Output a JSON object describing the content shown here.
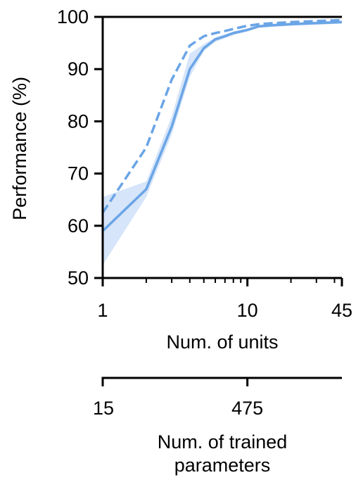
{
  "chart_data": {
    "type": "line",
    "xscale": "log",
    "xlabel": "Num. of units",
    "ylabel": "Performance (%)",
    "xlim": [
      1,
      45
    ],
    "ylim": [
      50,
      100
    ],
    "x_ticks": [
      1,
      10,
      45
    ],
    "x_tick_labels": [
      "1",
      "10",
      "45"
    ],
    "y_ticks": [
      50,
      60,
      70,
      80,
      90,
      100
    ],
    "y_tick_labels": [
      "50",
      "60",
      "70",
      "80",
      "90",
      "100"
    ],
    "secondary_axis": {
      "xlabel_lines": [
        "Num. of trained",
        "parameters"
      ],
      "tick_labels": [
        "15",
        "475"
      ],
      "tick_positions_units": [
        1,
        10
      ]
    },
    "color": "#6aa5e6",
    "band_color": "#cfe0f8",
    "series": [
      {
        "style": "solid",
        "x": [
          1,
          2,
          3,
          4,
          5,
          6,
          7,
          8,
          10,
          12,
          15,
          20,
          30,
          45
        ],
        "values": [
          59,
          67,
          79,
          90,
          94,
          95.7,
          96.3,
          96.9,
          97.5,
          98.2,
          98.4,
          98.6,
          98.8,
          99.0
        ],
        "lower": [
          52.5,
          65.5,
          77.5,
          88.5,
          93.5,
          95.2,
          95.9,
          96.5,
          97.2,
          97.9,
          98.1,
          98.3,
          98.5,
          98.7
        ],
        "upper": [
          65.5,
          68.5,
          81,
          93,
          94.8,
          96.1,
          96.7,
          97.2,
          97.8,
          98.5,
          98.7,
          98.9,
          99.1,
          99.3
        ]
      },
      {
        "style": "dashed",
        "x": [
          1,
          2,
          3,
          4,
          5,
          6,
          7,
          8,
          10,
          12,
          15,
          20,
          30,
          45
        ],
        "values": [
          62.5,
          75,
          88,
          94.5,
          96.3,
          96.9,
          97.3,
          97.7,
          98.3,
          98.6,
          98.8,
          99.0,
          99.2,
          99.4
        ]
      }
    ]
  }
}
